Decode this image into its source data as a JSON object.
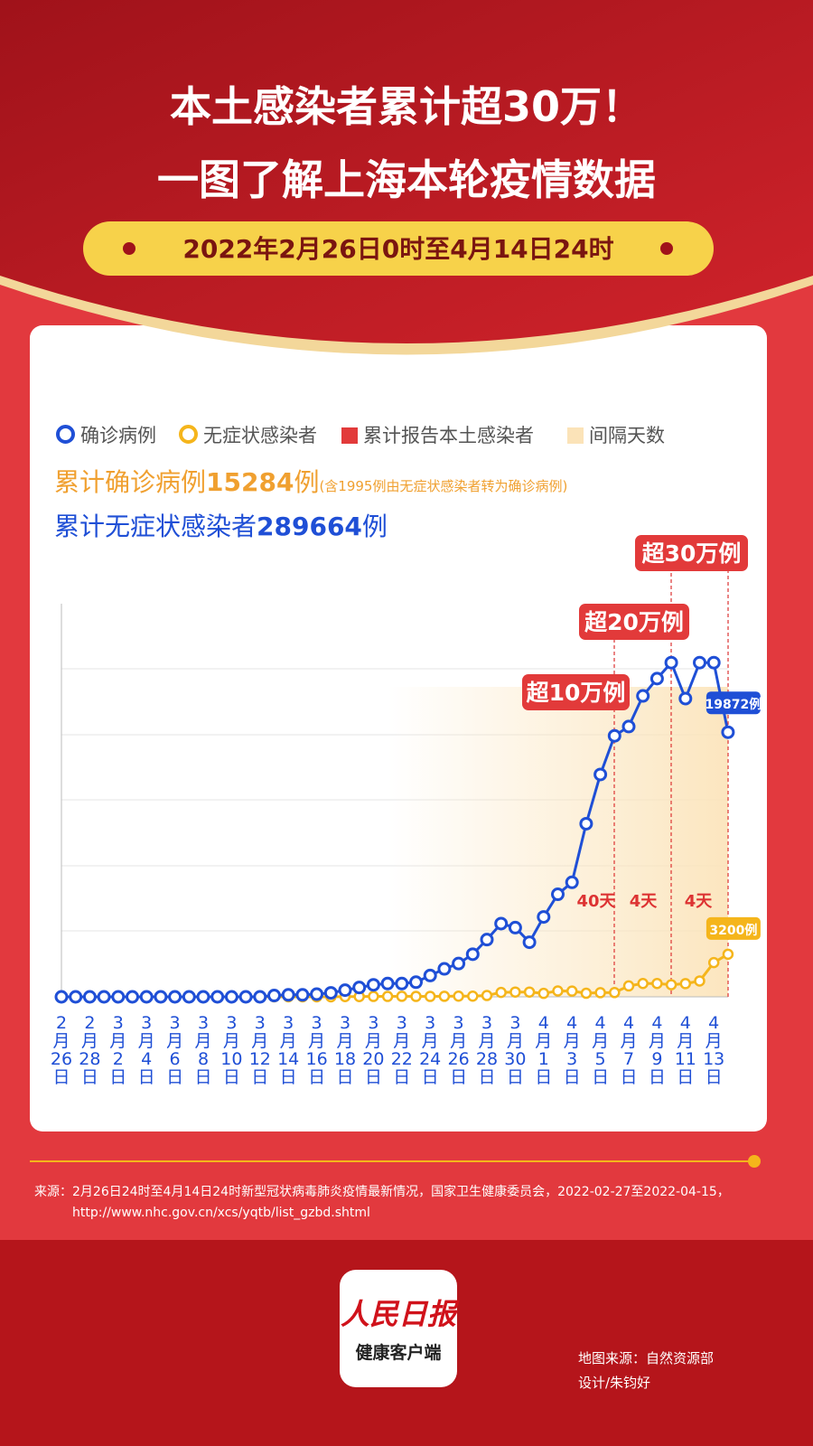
{
  "header": {
    "title_lines": [
      "本土感染者累计超30万！",
      "一图了解上海本轮疫情数据"
    ],
    "period": "2022年2月26日0时至4月14日24时"
  },
  "stats": {
    "confirmed_label": "累计确诊病例",
    "confirmed": 15284,
    "unit": "例",
    "confirmed_note": "(含1995例由无症状感染者转为确诊病例)",
    "asymptomatic_label": "累计无症状感染者",
    "asymptomatic": 289664
  },
  "chart_data": {
    "type": "line",
    "categories": [
      "2月26日",
      null,
      "2月28日",
      null,
      "3月2日",
      null,
      "3月4日",
      null,
      "3月6日",
      null,
      "3月8日",
      null,
      "3月10日",
      null,
      "3月12日",
      null,
      "3月14日",
      null,
      "3月16日",
      null,
      "3月18日",
      null,
      "3月20日",
      null,
      "3月22日",
      null,
      "3月24日",
      null,
      "3月26日",
      null,
      "3月28日",
      null,
      "3月30日",
      null,
      "4月1日",
      null,
      "4月3日",
      null,
      "4月5日",
      null,
      "4月7日",
      null,
      "4月9日",
      null,
      "4月11日",
      null,
      "4月13日",
      null
    ],
    "series": [
      {
        "name": "确诊病例",
        "color": "#1f4fd6",
        "values": [
          0,
          0,
          0,
          0,
          0,
          0,
          0,
          0,
          0,
          0,
          0,
          0,
          0,
          0,
          0,
          100,
          150,
          150,
          200,
          300,
          500,
          700,
          900,
          1000,
          1000,
          1100,
          1600,
          2100,
          2500,
          3200,
          4300,
          5500,
          5200,
          4100,
          6000,
          7700,
          8600,
          13000,
          16700,
          19600,
          20300,
          22600,
          23900,
          25100,
          22400,
          25100,
          25100,
          19872
        ],
        "value_labels": [
          null,
          null,
          null,
          null,
          null,
          null,
          null,
          null,
          null,
          null,
          null,
          null,
          null,
          null,
          null,
          null,
          null,
          null,
          null,
          null,
          null,
          null,
          null,
          null,
          null,
          null,
          null,
          null,
          null,
          null,
          null,
          null,
          null,
          null,
          null,
          null,
          null,
          null,
          null,
          null,
          null,
          null,
          null,
          null,
          null,
          null,
          null,
          "19872例"
        ]
      },
      {
        "name": "无症状感染者",
        "color": "#f5b51b",
        "values": [
          0,
          0,
          0,
          0,
          0,
          0,
          0,
          0,
          0,
          0,
          0,
          0,
          0,
          0,
          0,
          0,
          0,
          0,
          0,
          0,
          20,
          20,
          30,
          30,
          40,
          30,
          30,
          40,
          50,
          50,
          100,
          330,
          360,
          360,
          260,
          440,
          430,
          270,
          310,
          320,
          820,
          1000,
          1000,
          910,
          990,
          1190,
          2570,
          3200
        ],
        "value_labels": [
          null,
          null,
          null,
          null,
          null,
          null,
          null,
          null,
          null,
          null,
          null,
          null,
          null,
          null,
          null,
          null,
          null,
          null,
          null,
          null,
          null,
          null,
          null,
          null,
          null,
          null,
          null,
          null,
          null,
          null,
          null,
          null,
          null,
          null,
          null,
          null,
          null,
          null,
          null,
          null,
          null,
          null,
          null,
          null,
          null,
          null,
          null,
          "3200例"
        ]
      }
    ],
    "legend_extra": [
      {
        "name": "累计报告本土感染者",
        "color": "#e23a3a"
      },
      {
        "name": "间隔天数",
        "color": "#fbe3b8"
      }
    ],
    "milestones": [
      {
        "label": "超10万例",
        "interval": "40天"
      },
      {
        "label": "超20万例",
        "interval": "4天"
      },
      {
        "label": "超30万例",
        "interval": "4天"
      }
    ],
    "ylim": [
      0,
      30000
    ]
  },
  "source": {
    "lines": [
      "来源：2月26日24时至4月14日24时新型冠状病毒肺炎疫情最新情况，国家卫生健康委员会，2022-02-27至2022-04-15，",
      "http://www.nhc.gov.cn/xcs/yqtb/list_gzbd.shtml"
    ]
  },
  "footer": {
    "logo": "人民日报",
    "logo_sub": "健康客户端",
    "credits": [
      "地图来源：自然资源部",
      "设计/朱钧好"
    ]
  }
}
